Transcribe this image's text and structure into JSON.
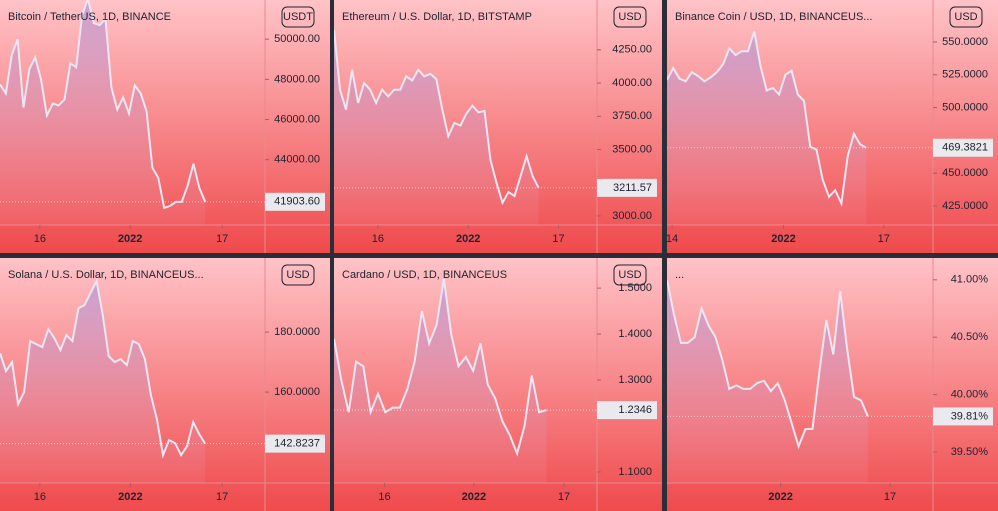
{
  "chart_data": [
    {
      "type": "area",
      "title": "Bitcoin / TetherUS, 1D, BINANCE",
      "unit": "USDT",
      "color": "#ece6f4",
      "x": [
        0,
        1,
        2,
        3,
        4,
        5,
        6,
        7,
        8,
        9,
        10,
        11,
        12,
        13,
        14,
        15,
        16,
        17,
        18,
        19,
        20,
        21,
        22,
        23,
        24,
        25,
        26,
        27,
        28,
        29,
        30,
        31,
        32,
        33,
        34,
        35
      ],
      "values": [
        47750,
        47300,
        49200,
        50000,
        46600,
        48500,
        49100,
        48000,
        46200,
        46800,
        46700,
        47000,
        48800,
        48600,
        51200,
        52000,
        50800,
        50700,
        51000,
        47600,
        46500,
        47100,
        46300,
        47700,
        47300,
        46400,
        43600,
        43100,
        41600,
        41700,
        41900,
        41900,
        42700,
        43800,
        42600,
        41903.6
      ],
      "last_label": "41903.60",
      "xlim": [
        0,
        45.2
      ],
      "ylim": [
        40750,
        51950
      ],
      "xticks": [
        {
          "value": 6.8,
          "label": "16"
        },
        {
          "value": 22.2,
          "label": "2022"
        },
        {
          "value": 37.9,
          "label": "17"
        }
      ],
      "yticks": [
        {
          "value": 44000,
          "label": "44000.00"
        },
        {
          "value": 46000,
          "label": "46000.00"
        },
        {
          "value": 48000,
          "label": "48000.00"
        },
        {
          "value": 50000,
          "label": "50000.00"
        }
      ]
    },
    {
      "type": "area",
      "title": "Ethereum / U.S. Dollar, 1D, BITSTAMP",
      "unit": "USD",
      "color": "#ece6f4",
      "x": [
        0,
        1,
        2,
        3,
        4,
        5,
        6,
        7,
        8,
        9,
        10,
        11,
        12,
        13,
        14,
        15,
        16,
        17,
        18,
        19,
        20,
        21,
        22,
        23,
        24,
        25,
        26,
        27,
        28,
        29,
        30,
        31,
        32,
        33,
        34
      ],
      "values": [
        4400,
        3950,
        3800,
        4100,
        3850,
        4000,
        3950,
        3850,
        3950,
        3900,
        3950,
        3950,
        4050,
        4020,
        4100,
        4050,
        4070,
        4030,
        3800,
        3600,
        3700,
        3680,
        3770,
        3830,
        3780,
        3790,
        3420,
        3250,
        3100,
        3180,
        3150,
        3300,
        3450,
        3300,
        3211.57
      ],
      "last_label": "3211.57",
      "xlim": [
        0,
        43.7
      ],
      "ylim": [
        2932,
        4625
      ],
      "xticks": [
        {
          "value": 7.3,
          "label": "16"
        },
        {
          "value": 22.3,
          "label": "2022"
        },
        {
          "value": 37.3,
          "label": "17"
        }
      ],
      "yticks": [
        {
          "value": 3000,
          "label": "3000.00"
        },
        {
          "value": 3500,
          "label": "3500.00"
        },
        {
          "value": 3750,
          "label": "3750.00"
        },
        {
          "value": 4000,
          "label": "4000.00"
        },
        {
          "value": 4250,
          "label": "4250.00"
        }
      ]
    },
    {
      "type": "area",
      "title": "Binance Coin / USD, 1D, BINANCEUS...",
      "unit": "USD",
      "color": "#ece6f4",
      "x": [
        0,
        1,
        2,
        3,
        4,
        5,
        6,
        7,
        8,
        9,
        10,
        11,
        12,
        13,
        14,
        15,
        16,
        17,
        18,
        19,
        20,
        21,
        22,
        23,
        24,
        25,
        26,
        27,
        28,
        29,
        30,
        31,
        32
      ],
      "values": [
        521,
        530,
        522,
        520,
        527,
        524,
        520,
        523,
        527,
        533,
        545,
        540,
        543,
        543,
        558,
        532,
        513,
        515,
        510,
        525,
        528,
        510,
        505,
        470,
        468,
        445,
        432,
        437,
        427,
        463,
        480,
        472,
        469.3821
      ],
      "last_label": "469.3821",
      "xlim": [
        0,
        42.7
      ],
      "ylim": [
        410.5,
        582
      ],
      "xticks": [
        {
          "value": 0.8,
          "label": "14"
        },
        {
          "value": 18.7,
          "label": "2022"
        },
        {
          "value": 34.8,
          "label": "17"
        }
      ],
      "yticks": [
        {
          "value": 425,
          "label": "425.0000"
        },
        {
          "value": 450,
          "label": "450.0000"
        },
        {
          "value": 500,
          "label": "500.0000"
        },
        {
          "value": 525,
          "label": "525.0000"
        },
        {
          "value": 550,
          "label": "550.0000"
        }
      ]
    },
    {
      "type": "area",
      "title": "Solana / U.S. Dollar, 1D, BINANCEUS...",
      "unit": "USD",
      "color": "#ece6f4",
      "x": [
        0,
        1,
        2,
        3,
        4,
        5,
        6,
        7,
        8,
        9,
        10,
        11,
        12,
        13,
        14,
        15,
        16,
        17,
        18,
        19,
        20,
        21,
        22,
        23,
        24,
        25,
        26,
        27,
        28,
        29,
        30,
        31,
        32,
        33,
        34
      ],
      "values": [
        173,
        167,
        170,
        156,
        160,
        177,
        176,
        175,
        181,
        178,
        174,
        179,
        177,
        188,
        189,
        193,
        197,
        186,
        172,
        170,
        171,
        169,
        177,
        176,
        171,
        159,
        151,
        139,
        144,
        143,
        139,
        142,
        150,
        146,
        142.8237
      ],
      "last_label": "142.8237",
      "xlim": [
        0,
        43.9
      ],
      "ylim": [
        129.7,
        204.7
      ],
      "xticks": [
        {
          "value": 6.6,
          "label": "16"
        },
        {
          "value": 21.6,
          "label": "2022"
        },
        {
          "value": 36.8,
          "label": "17"
        }
      ],
      "yticks": [
        {
          "value": 160,
          "label": "160.0000"
        },
        {
          "value": 180,
          "label": "180.0000"
        }
      ]
    },
    {
      "type": "area",
      "title": "Cardano / USD, 1D, BINANCEUS",
      "unit": "USD",
      "color": "#ece6f4",
      "x": [
        0,
        1,
        2,
        3,
        4,
        5,
        6,
        7,
        8,
        9,
        10,
        11,
        12,
        13,
        14,
        15,
        16,
        17,
        18,
        19,
        20,
        21,
        22,
        23,
        24,
        25,
        26,
        27,
        28,
        29
      ],
      "values": [
        1.39,
        1.3,
        1.23,
        1.34,
        1.33,
        1.23,
        1.27,
        1.23,
        1.24,
        1.24,
        1.28,
        1.34,
        1.45,
        1.38,
        1.42,
        1.52,
        1.4,
        1.33,
        1.35,
        1.32,
        1.38,
        1.29,
        1.26,
        1.21,
        1.18,
        1.14,
        1.2,
        1.31,
        1.23,
        1.2346
      ],
      "last_label": "1.2346",
      "xlim": [
        0,
        35.9
      ],
      "ylim": [
        1.076,
        1.5655
      ],
      "xticks": [
        {
          "value": 6.9,
          "label": "16"
        },
        {
          "value": 19.1,
          "label": "2022"
        },
        {
          "value": 31.4,
          "label": "17"
        }
      ],
      "yticks": [
        {
          "value": 1.1,
          "label": "1.1000"
        },
        {
          "value": 1.3,
          "label": "1.3000"
        },
        {
          "value": 1.4,
          "label": "1.4000"
        },
        {
          "value": 1.5,
          "label": "1.5000"
        }
      ]
    },
    {
      "type": "area",
      "title": "...",
      "color": "#ece6f4",
      "x": [
        0,
        1,
        2,
        3,
        4,
        5,
        6,
        7,
        8,
        9,
        10,
        11,
        12,
        13,
        14,
        15,
        16,
        17,
        18,
        19,
        20,
        21,
        22,
        23,
        24,
        25,
        26,
        27,
        28,
        29
      ],
      "values": [
        41.0,
        40.7,
        40.45,
        40.45,
        40.5,
        40.75,
        40.6,
        40.5,
        40.3,
        40.05,
        40.08,
        40.05,
        40.05,
        40.1,
        40.12,
        40.03,
        40.1,
        39.95,
        39.75,
        39.55,
        39.7,
        39.7,
        40.2,
        40.65,
        40.35,
        40.9,
        40.4,
        39.98,
        39.95,
        39.81
      ],
      "last_label": "39.81%",
      "xlim": [
        0,
        38.4
      ],
      "ylim": [
        39.23,
        41.19
      ],
      "xticks": [
        {
          "value": 16.4,
          "label": "2022"
        },
        {
          "value": 32.2,
          "label": "17"
        }
      ],
      "yticks": [
        {
          "value": 39.5,
          "label": "39.50%"
        },
        {
          "value": 40,
          "label": "40.00%"
        },
        {
          "value": 40.5,
          "label": "40.50%"
        },
        {
          "value": 41,
          "label": "41.00%"
        }
      ]
    }
  ]
}
